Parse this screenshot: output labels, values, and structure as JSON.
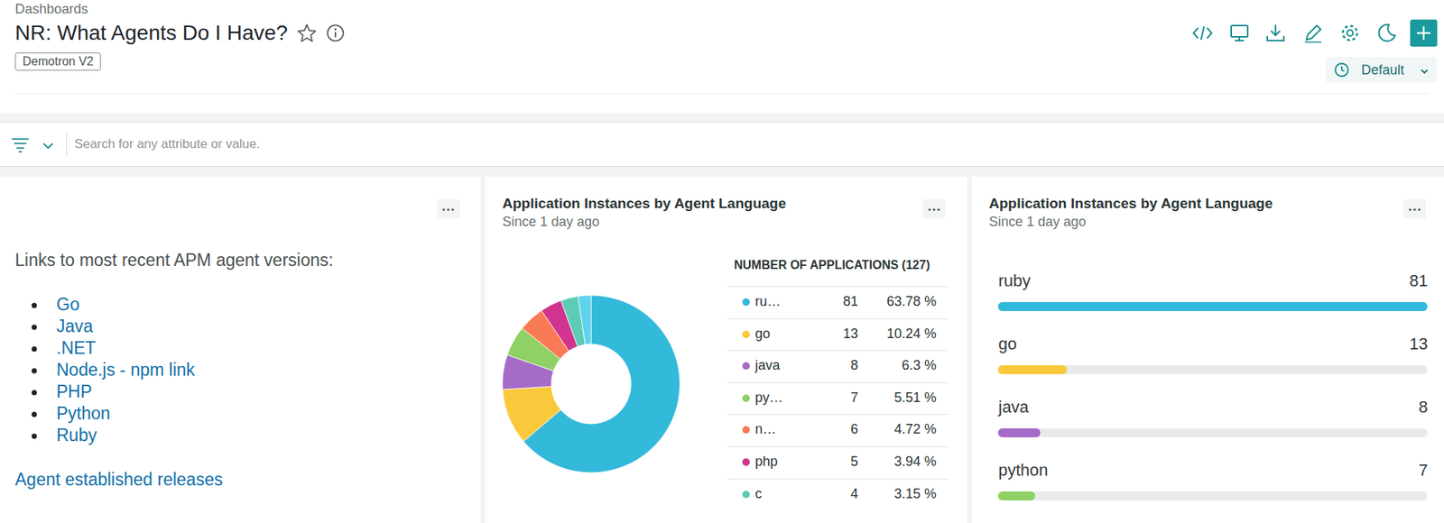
{
  "header": {
    "breadcrumb": "Dashboards",
    "title": "NR: What Agents Do I Have?",
    "tag": "Demotron V2",
    "time_picker": "Default"
  },
  "filter_bar": {
    "placeholder": "Search for any attribute or value."
  },
  "markdown_panel": {
    "heading": "Links to most recent APM agent versions:",
    "links": [
      "Go",
      "Java",
      ".NET",
      "Node.js - npm link",
      "PHP",
      "Python",
      "Ruby"
    ],
    "footer_link": "Agent established releases"
  },
  "chart_data": [
    {
      "type": "pie",
      "title": "Application Instances by Agent Language",
      "subtitle": "Since 1 day ago",
      "legend": "right",
      "legend_title": "NUMBER OF APPLICATIONS (127)",
      "categories": [
        "ru…",
        "go",
        "java",
        "py…",
        "n…",
        "php",
        "c",
        null
      ],
      "values": [
        81,
        13,
        8,
        7,
        6,
        5,
        4,
        3
      ],
      "percent_labels": [
        "63.78 %",
        "10.24 %",
        "6.3 %",
        "5.51 %",
        "4.72 %",
        "3.94 %",
        "3.15 %",
        null
      ],
      "colors": [
        "#33b9da",
        "#f9c93b",
        "#a66bc7",
        "#8fd164",
        "#f97b55",
        "#d1348e",
        "#5ecbb6",
        "#5dd3ee"
      ],
      "data_labels": true
    },
    {
      "type": "bar",
      "orientation": "horizontal",
      "title": "Application Instances by Agent Language",
      "subtitle": "Since 1 day ago",
      "categories": [
        "ruby",
        "go",
        "java",
        "python"
      ],
      "values": [
        81,
        13,
        8,
        7
      ],
      "colors": [
        "#33b9da",
        "#f9c93b",
        "#a66bc7",
        "#8fd164"
      ],
      "xlim": [
        0,
        81
      ],
      "data_labels": true,
      "tick_labels": false
    }
  ]
}
